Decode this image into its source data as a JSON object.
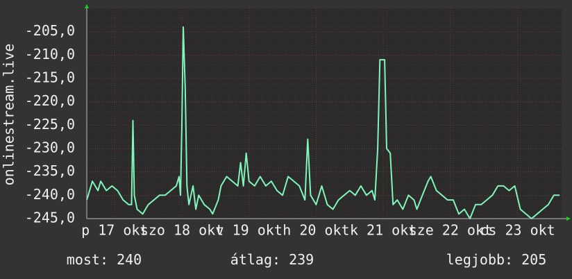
{
  "chart_data": {
    "type": "line",
    "y_label": "onlinestream.live",
    "x": [
      0,
      2,
      4,
      5,
      7,
      9,
      11,
      13,
      15,
      16,
      16.5,
      17,
      18,
      20,
      22,
      24,
      26,
      28,
      30,
      32,
      33,
      33.5,
      34,
      34.5,
      35.2,
      35.8,
      36.5,
      38,
      39,
      40,
      42,
      44,
      45,
      47,
      48,
      50,
      52,
      54,
      55,
      56,
      57,
      58,
      60,
      62,
      64,
      66,
      68,
      70,
      72,
      74,
      76,
      78,
      79,
      80,
      82,
      84,
      86,
      88,
      90,
      92,
      94,
      96,
      98,
      100,
      102,
      103,
      104,
      104.8,
      106.5,
      107.2,
      108.5,
      109.5,
      111,
      113,
      115,
      117,
      118,
      120,
      122,
      123,
      125,
      127,
      129,
      131,
      133,
      135,
      137,
      139,
      141,
      143,
      145,
      147,
      149,
      151,
      153,
      155,
      157,
      159,
      161,
      163,
      165,
      167,
      169
    ],
    "series": [
      {
        "name": "onlinestream.live",
        "color": "#80f5bc",
        "values": [
          -241,
          -237,
          -239,
          -237,
          -239,
          -238,
          -239,
          -241,
          -242,
          -242,
          -224,
          -240,
          -243,
          -244,
          -242,
          -241,
          -240,
          -240,
          -239,
          -238,
          -236,
          -240,
          -225,
          -204,
          -217,
          -238,
          -242,
          -238,
          -243,
          -240,
          -242,
          -243,
          -244,
          -241,
          -238,
          -236,
          -237,
          -238,
          -233,
          -238,
          -231,
          -237,
          -238,
          -236,
          -238,
          -237,
          -239,
          -240,
          -236,
          -237,
          -238,
          -241,
          -228,
          -240,
          -242,
          -238,
          -242,
          -243,
          -241,
          -240,
          -239,
          -240,
          -238,
          -240,
          -239,
          -241,
          -230,
          -211,
          -211,
          -230,
          -231,
          -242,
          -241,
          -243,
          -240,
          -241,
          -243,
          -240,
          -237,
          -236,
          -239,
          -240,
          -241,
          -241,
          -244,
          -243,
          -245,
          -242,
          -242,
          -241,
          -240,
          -238,
          -238,
          -239,
          -238,
          -243,
          -244,
          -245,
          -244,
          -243,
          -242,
          -240,
          -240
        ]
      }
    ],
    "xlim": [
      0,
      170
    ],
    "xticks": [
      {
        "value": 10,
        "label": "p 17 okt"
      },
      {
        "value": 34,
        "label": "szo 18 okt"
      },
      {
        "value": 58,
        "label": "v 19 okt"
      },
      {
        "value": 82,
        "label": "h 20 okt"
      },
      {
        "value": 106,
        "label": "k 21 okt"
      },
      {
        "value": 130,
        "label": "sze 22 okt"
      },
      {
        "value": 154,
        "label": "cs 23 okt"
      }
    ],
    "ylim": [
      -245,
      -200
    ],
    "yticks": [
      {
        "value": -245,
        "label": "-245,0"
      },
      {
        "value": -240,
        "label": "-240,0"
      },
      {
        "value": -235,
        "label": "-235,0"
      },
      {
        "value": -230,
        "label": "-230,0"
      },
      {
        "value": -225,
        "label": "-225,0"
      },
      {
        "value": -220,
        "label": "-220,0"
      },
      {
        "value": -215,
        "label": "-215,0"
      },
      {
        "value": -210,
        "label": "-210,0"
      },
      {
        "value": -205,
        "label": "-205,0"
      }
    ],
    "grid": true,
    "summary": [
      {
        "label": "most:",
        "value": 240
      },
      {
        "label": "átlag:",
        "value": 239
      },
      {
        "label": "legjobb:",
        "value": 205
      }
    ]
  }
}
